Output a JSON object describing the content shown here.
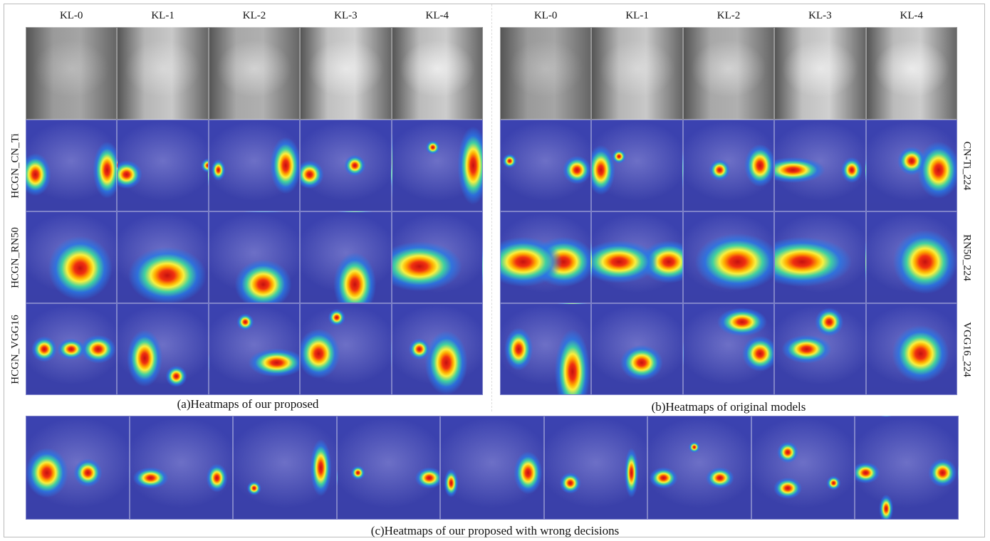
{
  "panels": [
    {
      "columns": [
        "KL-0",
        "KL-1",
        "KL-2",
        "KL-3",
        "KL-4"
      ],
      "rows": [
        "HCGN_CN_Ti",
        "HCGN_RN50",
        "HCGN_VGG16"
      ],
      "caption": "(a)Heatmaps of our proposed"
    },
    {
      "columns": [
        "KL-0",
        "KL-1",
        "KL-2",
        "KL-3",
        "KL-4"
      ],
      "rows": [
        "CN-Ti_224",
        "RN50_224",
        "VGG16_224"
      ],
      "caption": "(b)Heatmaps of original models"
    }
  ],
  "wrong_decisions": {
    "caption": "(c)Heatmaps of our proposed with wrong decisions"
  }
}
